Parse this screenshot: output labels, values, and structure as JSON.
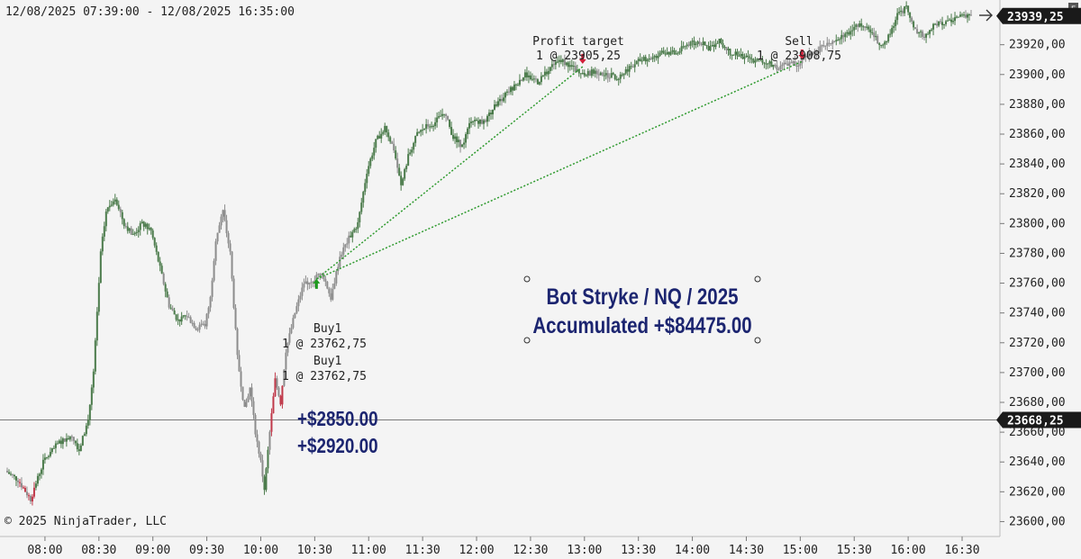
{
  "header": {
    "date_range": "12/08/2025 07:39:00 - 12/08/2025 16:35:00",
    "arrow_icon": "arrow-right-icon",
    "corner_button_label": "F"
  },
  "watermark": "© 2025 NinjaTrader, LLC",
  "colors": {
    "background": "#f4f4f4",
    "up_bar": "#4a7a4a",
    "neutral_bar": "#8c8c8c",
    "down_bar": "#c0394a",
    "trade_line": "#2e9a2e",
    "text_navy": "#1c2570",
    "price_tag_bg": "#1a1a1a",
    "price_tag_text": "#ffffff",
    "horizontal_line": "#7a7a7a"
  },
  "chart_data": {
    "type": "candlestick",
    "ylim": [
      23590,
      23950
    ],
    "y_ticks": [
      "23600,00",
      "23620,00",
      "23640,00",
      "23660,00",
      "23680,00",
      "23700,00",
      "23720,00",
      "23740,00",
      "23760,00",
      "23780,00",
      "23800,00",
      "23820,00",
      "23840,00",
      "23860,00",
      "23880,00",
      "23900,00",
      "23920,00"
    ],
    "y_tick_values": [
      23600,
      23620,
      23640,
      23660,
      23680,
      23700,
      23720,
      23740,
      23760,
      23780,
      23800,
      23820,
      23840,
      23860,
      23880,
      23900,
      23920
    ],
    "x_ticks": [
      "08:00",
      "08:30",
      "09:00",
      "09:30",
      "10:00",
      "10:30",
      "11:00",
      "11:30",
      "12:00",
      "12:30",
      "13:00",
      "13:30",
      "14:00",
      "14:30",
      "15:00",
      "15:30",
      "16:00",
      "16:30"
    ],
    "x_tick_minutes": [
      480,
      510,
      540,
      570,
      600,
      630,
      660,
      690,
      720,
      750,
      780,
      810,
      840,
      870,
      900,
      930,
      960,
      990
    ],
    "x_range_minutes": [
      459,
      995
    ],
    "price_path": [
      [
        459,
        23634
      ],
      [
        466,
        23628
      ],
      [
        473,
        23615
      ],
      [
        480,
        23640
      ],
      [
        488,
        23652
      ],
      [
        496,
        23658
      ],
      [
        500,
        23648
      ],
      [
        505,
        23668
      ],
      [
        508,
        23700
      ],
      [
        512,
        23780
      ],
      [
        515,
        23808
      ],
      [
        520,
        23818
      ],
      [
        525,
        23800
      ],
      [
        530,
        23792
      ],
      [
        535,
        23800
      ],
      [
        540,
        23795
      ],
      [
        545,
        23770
      ],
      [
        550,
        23745
      ],
      [
        555,
        23735
      ],
      [
        560,
        23738
      ],
      [
        565,
        23730
      ],
      [
        570,
        23732
      ],
      [
        573,
        23750
      ],
      [
        576,
        23790
      ],
      [
        580,
        23808
      ],
      [
        584,
        23780
      ],
      [
        588,
        23710
      ],
      [
        592,
        23675
      ],
      [
        595,
        23690
      ],
      [
        598,
        23660
      ],
      [
        601,
        23640
      ],
      [
        603,
        23622
      ],
      [
        606,
        23660
      ],
      [
        609,
        23695
      ],
      [
        612,
        23680
      ],
      [
        615,
        23715
      ],
      [
        620,
        23740
      ],
      [
        625,
        23760
      ],
      [
        630,
        23762
      ],
      [
        635,
        23768
      ],
      [
        640,
        23750
      ],
      [
        645,
        23778
      ],
      [
        650,
        23790
      ],
      [
        655,
        23800
      ],
      [
        660,
        23835
      ],
      [
        665,
        23855
      ],
      [
        670,
        23865
      ],
      [
        675,
        23850
      ],
      [
        679,
        23825
      ],
      [
        683,
        23845
      ],
      [
        688,
        23860
      ],
      [
        693,
        23865
      ],
      [
        698,
        23868
      ],
      [
        703,
        23875
      ],
      [
        708,
        23858
      ],
      [
        713,
        23852
      ],
      [
        718,
        23870
      ],
      [
        725,
        23868
      ],
      [
        732,
        23880
      ],
      [
        740,
        23890
      ],
      [
        748,
        23900
      ],
      [
        755,
        23895
      ],
      [
        762,
        23905
      ],
      [
        768,
        23910
      ],
      [
        774,
        23905
      ],
      [
        780,
        23900
      ],
      [
        787,
        23902
      ],
      [
        793,
        23900
      ],
      [
        800,
        23898
      ],
      [
        806,
        23905
      ],
      [
        813,
        23910
      ],
      [
        820,
        23912
      ],
      [
        826,
        23915
      ],
      [
        832,
        23914
      ],
      [
        838,
        23920
      ],
      [
        845,
        23922
      ],
      [
        850,
        23918
      ],
      [
        856,
        23922
      ],
      [
        862,
        23915
      ],
      [
        868,
        23912
      ],
      [
        875,
        23910
      ],
      [
        882,
        23908
      ],
      [
        888,
        23905
      ],
      [
        895,
        23908
      ],
      [
        900,
        23905
      ],
      [
        903,
        23910
      ],
      [
        908,
        23915
      ],
      [
        915,
        23920
      ],
      [
        922,
        23925
      ],
      [
        928,
        23928
      ],
      [
        934,
        23935
      ],
      [
        940,
        23930
      ],
      [
        945,
        23920
      ],
      [
        950,
        23925
      ],
      [
        955,
        23940
      ],
      [
        960,
        23945
      ],
      [
        965,
        23930
      ],
      [
        970,
        23925
      ],
      [
        975,
        23932
      ],
      [
        980,
        23935
      ],
      [
        985,
        23936
      ],
      [
        990,
        23939
      ],
      [
        995,
        23940
      ]
    ],
    "current_price": {
      "label": "23939,25",
      "value": 23939.25
    },
    "reference_price": {
      "label": "23668,25",
      "value": 23668.25
    },
    "trades": [
      {
        "entry_minute": 631,
        "entry_price": 23762.75,
        "exit_minute": 779,
        "exit_price": 23905.25
      },
      {
        "entry_minute": 631,
        "entry_price": 23762.75,
        "exit_minute": 901,
        "exit_price": 23908.75
      }
    ],
    "annotations": {
      "entry_arrow": {
        "minute": 631,
        "price": 23758
      },
      "exit_arrows": [
        {
          "minute": 779,
          "price": 23912
        },
        {
          "minute": 901,
          "price": 23915
        }
      ],
      "profit_target": {
        "title": "Profit target",
        "detail": "1 @ 23905,25"
      },
      "sell": {
        "title": "Sell",
        "detail": "1 @ 23908,75"
      },
      "buys": [
        {
          "title": "Buy1",
          "detail": "1 @ 23762,75"
        },
        {
          "title": "Buy1",
          "detail": "1 @ 23762,75"
        }
      ],
      "pnl": [
        "+$2850.00",
        "+$2920.00"
      ]
    },
    "overlay_text": {
      "line1": "Bot Stryke / NQ / 2025",
      "line2": "Accumulated +$84475.00"
    }
  }
}
